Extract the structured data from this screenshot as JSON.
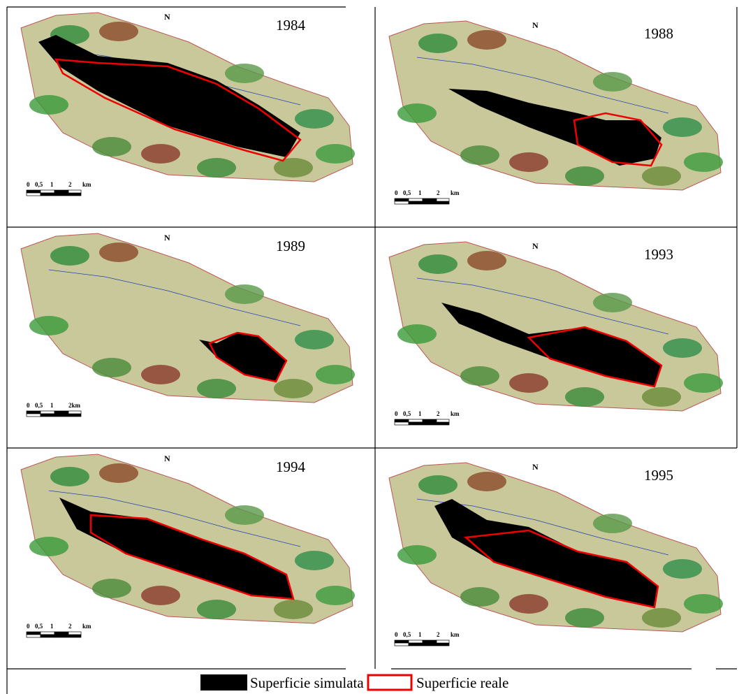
{
  "panels": [
    {
      "year": "1984",
      "north": "N",
      "scale": [
        "0",
        "0,5",
        "1",
        "2",
        "km"
      ]
    },
    {
      "year": "1988",
      "north": "N",
      "scale": [
        "0",
        "0,5",
        "1",
        "2",
        "km"
      ]
    },
    {
      "year": "1989",
      "north": "N",
      "scale": [
        "0",
        "0,5",
        "1",
        "2km"
      ]
    },
    {
      "year": "1993",
      "north": "N",
      "scale": [
        "0",
        "0,5",
        "1",
        "2",
        "km"
      ]
    },
    {
      "year": "1994",
      "north": "N",
      "scale": [
        "0",
        "0,5",
        "1",
        "2",
        "km"
      ]
    },
    {
      "year": "1995",
      "north": "N",
      "scale": [
        "0",
        "0,5",
        "1",
        "2",
        "km"
      ]
    }
  ],
  "legend": {
    "items": [
      "Superficie simulata",
      "Superficie reale"
    ]
  }
}
